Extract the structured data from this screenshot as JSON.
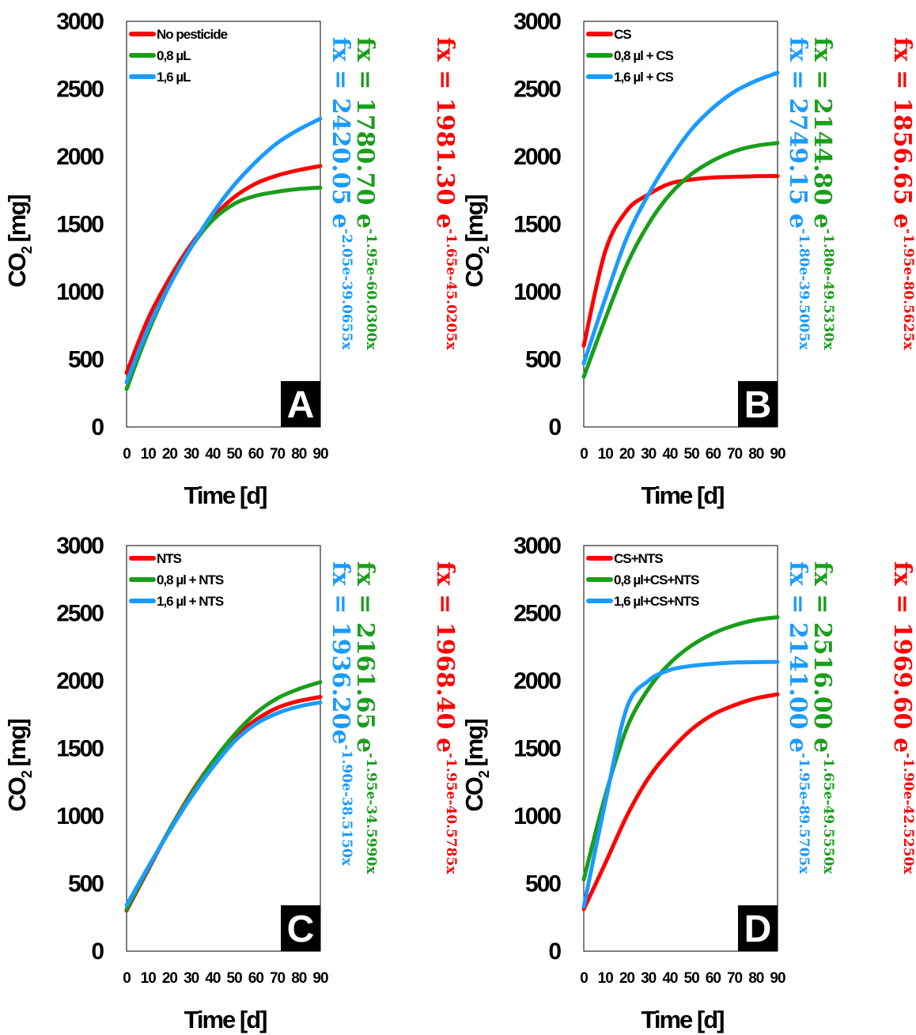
{
  "chart_data": [
    {
      "type": "line",
      "panel_label": "A",
      "xlabel": "Time [d]",
      "ylabel_main": "CO",
      "ylabel_sub": "2",
      "ylabel_unit": " [mg]",
      "xlim": [
        0,
        90
      ],
      "ylim": [
        0,
        3000
      ],
      "xticks": [
        "0",
        "10",
        "20",
        "30",
        "40",
        "50",
        "60",
        "70",
        "80",
        "90"
      ],
      "yticks": [
        "0",
        "500",
        "1000",
        "1500",
        "2000",
        "2500",
        "3000"
      ],
      "legend_position": "top-left",
      "series": [
        {
          "name": "No pesticide",
          "color": "#ff0000",
          "x": [
            0,
            10,
            20,
            30,
            40,
            50,
            60,
            70,
            80,
            90
          ],
          "values": [
            400,
            800,
            1100,
            1350,
            1550,
            1700,
            1800,
            1860,
            1900,
            1930
          ],
          "equation": "fx = 1981.30 e^{-1.65e^{-45.0205x}}"
        },
        {
          "name": "0,8 µL",
          "color": "#1a9e1a",
          "x": [
            0,
            10,
            20,
            30,
            40,
            50,
            60,
            70,
            80,
            90
          ],
          "values": [
            280,
            700,
            1050,
            1330,
            1530,
            1650,
            1710,
            1740,
            1760,
            1770
          ],
          "equation": "fx = 1780.70 e^{-1.95e^{-60.0300x}}"
        },
        {
          "name": "1,6 µL",
          "color": "#1a9bff",
          "x": [
            0,
            10,
            20,
            30,
            40,
            50,
            60,
            70,
            80,
            90
          ],
          "values": [
            330,
            730,
            1050,
            1330,
            1580,
            1790,
            1960,
            2100,
            2200,
            2280
          ],
          "equation": "fx = 2420.05 e^{-2.05e^{-39.0655x}}"
        }
      ]
    },
    {
      "type": "line",
      "panel_label": "B",
      "xlabel": "Time [d]",
      "ylabel_main": "CO",
      "ylabel_sub": "2",
      "ylabel_unit": " [mg]",
      "xlim": [
        0,
        90
      ],
      "ylim": [
        0,
        3000
      ],
      "xticks": [
        "0",
        "10",
        "20",
        "30",
        "40",
        "50",
        "60",
        "70",
        "80",
        "90"
      ],
      "yticks": [
        "0",
        "500",
        "1000",
        "1500",
        "2000",
        "2500",
        "3000"
      ],
      "legend_position": "top-left",
      "series": [
        {
          "name": "CS",
          "color": "#ff0000",
          "x": [
            0,
            10,
            20,
            30,
            40,
            50,
            60,
            70,
            80,
            90
          ],
          "values": [
            600,
            1300,
            1600,
            1720,
            1800,
            1830,
            1845,
            1850,
            1855,
            1856
          ],
          "equation": "fx = 1856.65 e^{-1.95e^{-80.5625x}}"
        },
        {
          "name": "0,8 µl + CS",
          "color": "#1a9e1a",
          "x": [
            0,
            10,
            20,
            30,
            40,
            50,
            60,
            70,
            80,
            90
          ],
          "values": [
            370,
            800,
            1200,
            1500,
            1720,
            1870,
            1970,
            2040,
            2080,
            2100
          ],
          "equation": "fx = 2144.80 e^{-1.80e^{-49.5330x}}"
        },
        {
          "name": "1,6 µl + CS",
          "color": "#1a9bff",
          "x": [
            0,
            10,
            20,
            30,
            40,
            50,
            60,
            70,
            80,
            90
          ],
          "values": [
            470,
            950,
            1400,
            1720,
            1980,
            2200,
            2360,
            2480,
            2560,
            2620
          ],
          "equation": "fx = 2749.15 e^{-1.80e^{-39.5005x}}"
        }
      ]
    },
    {
      "type": "line",
      "panel_label": "C",
      "xlabel": "Time [d]",
      "ylabel_main": "CO",
      "ylabel_sub": "2",
      "ylabel_unit": " [mg]",
      "xlim": [
        0,
        90
      ],
      "ylim": [
        0,
        3000
      ],
      "xticks": [
        "0",
        "10",
        "20",
        "30",
        "40",
        "50",
        "60",
        "70",
        "80",
        "90"
      ],
      "yticks": [
        "0",
        "500",
        "1000",
        "1500",
        "2000",
        "2500",
        "3000"
      ],
      "legend_position": "top-left",
      "series": [
        {
          "name": "NTS",
          "color": "#ff0000",
          "x": [
            0,
            10,
            20,
            30,
            40,
            50,
            60,
            70,
            80,
            90
          ],
          "values": [
            300,
            600,
            900,
            1170,
            1400,
            1580,
            1710,
            1800,
            1850,
            1880
          ],
          "equation": "fx = 1968.40 e^{-1.95e^{-40.5785x}}"
        },
        {
          "name": "0,8 µl + NTS",
          "color": "#1a9e1a",
          "x": [
            0,
            10,
            20,
            30,
            40,
            50,
            60,
            70,
            80,
            90
          ],
          "values": [
            310,
            610,
            900,
            1160,
            1400,
            1600,
            1760,
            1870,
            1940,
            1990
          ],
          "equation": "fx = 2161.65 e^{-1.95e^{-34.5990x}}"
        },
        {
          "name": "1,6 µl + NTS",
          "color": "#1a9bff",
          "x": [
            0,
            10,
            20,
            30,
            40,
            50,
            60,
            70,
            80,
            90
          ],
          "values": [
            340,
            620,
            890,
            1140,
            1360,
            1550,
            1680,
            1760,
            1810,
            1840
          ],
          "equation": "fx = 1936.20e^{-1.90e^{-38.5150x}}"
        }
      ]
    },
    {
      "type": "line",
      "panel_label": "D",
      "xlabel": "Time [d]",
      "ylabel_main": "CO",
      "ylabel_sub": "2",
      "ylabel_unit": " [mg]",
      "xlim": [
        0,
        90
      ],
      "ylim": [
        0,
        3000
      ],
      "xticks": [
        "0",
        "10",
        "20",
        "30",
        "40",
        "50",
        "60",
        "70",
        "80",
        "90"
      ],
      "yticks": [
        "0",
        "500",
        "1000",
        "1500",
        "2000",
        "2500",
        "3000"
      ],
      "legend_position": "top-left",
      "series": [
        {
          "name": "CS+NTS",
          "color": "#ff0000",
          "x": [
            0,
            10,
            20,
            30,
            40,
            50,
            60,
            70,
            80,
            90
          ],
          "values": [
            310,
            650,
            1000,
            1280,
            1480,
            1640,
            1750,
            1820,
            1870,
            1900
          ],
          "equation": "fx = 1969.60 e^{-1.90e^{-42.5250x}}"
        },
        {
          "name": "0,8 µl+CS+NTS",
          "color": "#1a9e1a",
          "x": [
            0,
            10,
            20,
            30,
            40,
            50,
            60,
            70,
            80,
            90
          ],
          "values": [
            530,
            1150,
            1650,
            1940,
            2130,
            2260,
            2350,
            2410,
            2450,
            2470
          ],
          "equation": "fx = 2516.00 e^{-1.65e^{-49.5550x}}"
        },
        {
          "name": "1,6 µl+CS+NTS",
          "color": "#1a9bff",
          "x": [
            0,
            10,
            20,
            30,
            40,
            50,
            60,
            70,
            80,
            90
          ],
          "values": [
            330,
            1100,
            1800,
            2000,
            2080,
            2110,
            2125,
            2135,
            2138,
            2140
          ],
          "equation": "fx = 2141.00 e^{-1.95e^{-89.5705x}}"
        }
      ]
    }
  ]
}
